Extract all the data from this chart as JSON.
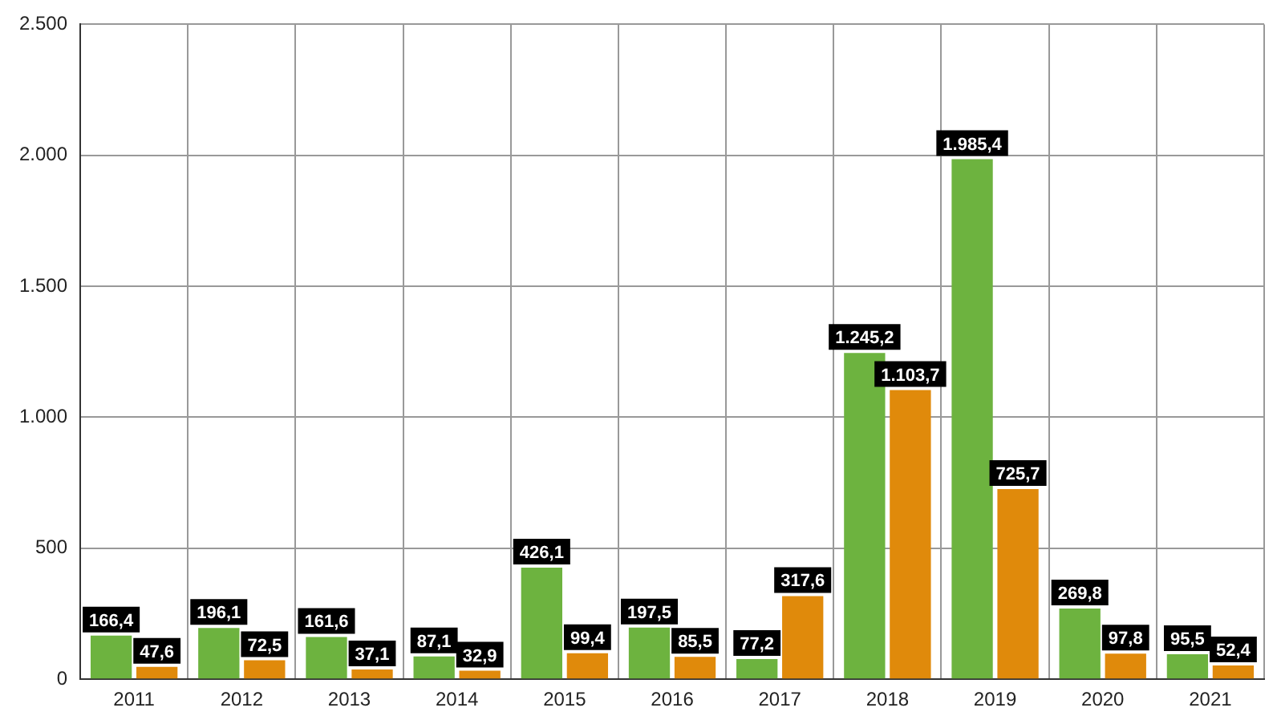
{
  "chart_data": {
    "type": "bar",
    "categories": [
      "2011",
      "2012",
      "2013",
      "2014",
      "2015",
      "2016",
      "2017",
      "2018",
      "2019",
      "2020",
      "2021"
    ],
    "series": [
      {
        "color": "#6db33f",
        "values": [
          166.4,
          196.1,
          161.6,
          87.1,
          426.1,
          197.5,
          77.2,
          1245.2,
          1985.4,
          269.8,
          95.5
        ],
        "value_labels": [
          "166,4",
          "196,1",
          "161,6",
          "87,1",
          "426,1",
          "197,5",
          "77,2",
          "1.245,2",
          "1.985,4",
          "269,8",
          "95,5"
        ]
      },
      {
        "color": "#e08a0b",
        "values": [
          47.6,
          72.5,
          37.1,
          32.9,
          99.4,
          85.5,
          317.6,
          1103.7,
          725.7,
          97.8,
          52.4
        ],
        "value_labels": [
          "47,6",
          "72,5",
          "37,1",
          "32,9",
          "99,4",
          "85,5",
          "317,6",
          "1.103,7",
          "725,7",
          "97,8",
          "52,4"
        ]
      }
    ],
    "ylim": [
      0,
      2500
    ],
    "yticks": [
      0,
      500,
      {
        "value": 1000,
        "label": "1.000"
      },
      {
        "value": 1500,
        "label": "1.500"
      },
      {
        "value": 2000,
        "label": "2.000"
      },
      {
        "value": 2500,
        "label": "2.500"
      }
    ],
    "grid": true,
    "legend": false
  }
}
